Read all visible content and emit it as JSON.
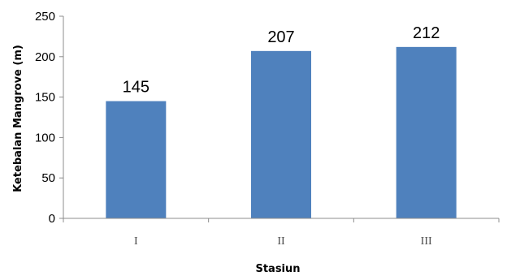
{
  "chart_data": {
    "type": "bar",
    "categories": [
      "I",
      "II",
      "III"
    ],
    "values": [
      145,
      207,
      212
    ],
    "data_labels": [
      "145",
      "207",
      "212"
    ],
    "title": "",
    "xlabel": "Stasiun",
    "ylabel": "Ketebalan Mangrove (m)",
    "ylim": [
      0,
      250
    ],
    "yticks": [
      "0",
      "50",
      "100",
      "150",
      "200",
      "250"
    ],
    "grid": false,
    "legend": "none",
    "bar_color": "#4f81bd"
  }
}
